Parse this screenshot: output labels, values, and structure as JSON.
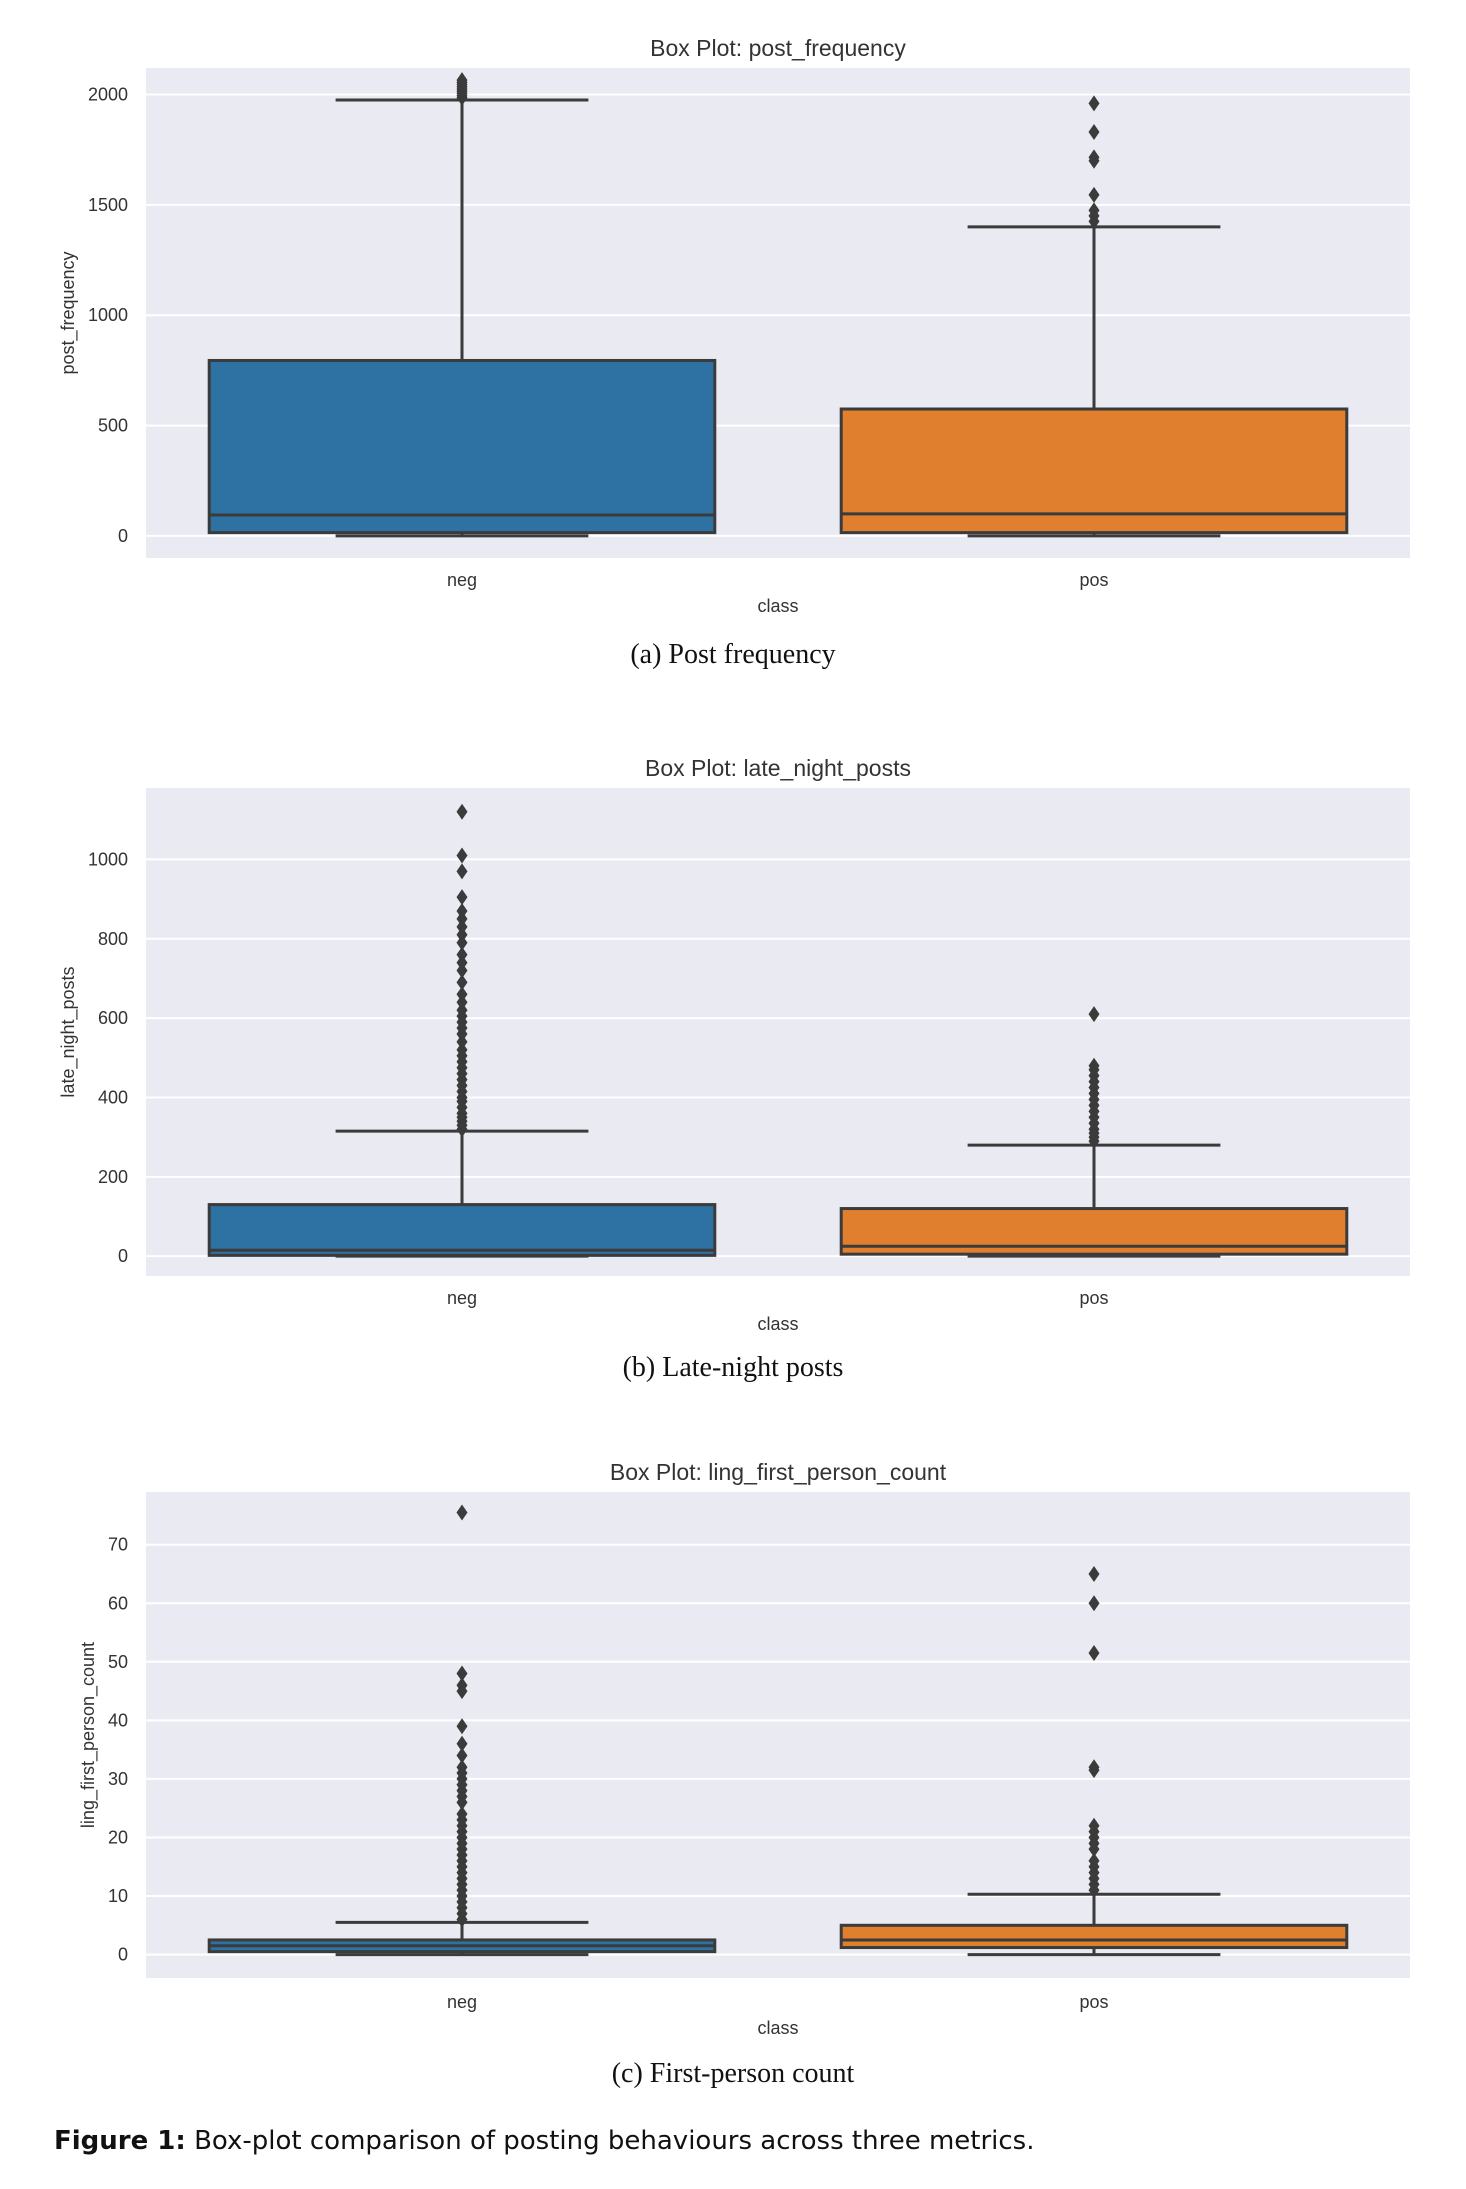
{
  "figure": {
    "label": "Figure 1:",
    "text": "Box-plot comparison of posting behaviours across three metrics."
  },
  "colors": {
    "neg": "#2e71a3",
    "pos": "#e07f2d",
    "line": "#3b3b3b",
    "bg": "#eaeaf2",
    "grid": "#ffffff"
  },
  "chart_data": [
    {
      "type": "box",
      "title": "Box Plot: post_frequency",
      "caption": "(a) Post frequency",
      "xlabel": "class",
      "ylabel": "post_frequency",
      "categories": [
        "neg",
        "pos"
      ],
      "yticks": [
        0,
        500,
        1000,
        1500,
        2000
      ],
      "ylim": [
        -100,
        2120
      ],
      "grid": true,
      "boxes": [
        {
          "category": "neg",
          "whisker_low": 0,
          "q1": 15,
          "median": 95,
          "q3": 795,
          "whisker_high": 1975,
          "outliers": [
            1985,
            1995,
            2005,
            2015,
            2025,
            2035,
            2045,
            2055,
            2065
          ]
        },
        {
          "category": "pos",
          "whisker_low": 0,
          "q1": 15,
          "median": 100,
          "q3": 575,
          "whisker_high": 1400,
          "outliers": [
            1425,
            1450,
            1475,
            1545,
            1700,
            1715,
            1830,
            1960
          ]
        }
      ]
    },
    {
      "type": "box",
      "title": "Box Plot: late_night_posts",
      "caption": "(b) Late-night posts",
      "xlabel": "class",
      "ylabel": "late_night_posts",
      "categories": [
        "neg",
        "pos"
      ],
      "yticks": [
        0,
        200,
        400,
        600,
        800,
        1000
      ],
      "ylim": [
        -50,
        1180
      ],
      "grid": true,
      "boxes": [
        {
          "category": "neg",
          "whisker_low": 0,
          "q1": 2,
          "median": 15,
          "q3": 130,
          "whisker_high": 315,
          "outliers": [
            320,
            330,
            340,
            350,
            360,
            375,
            390,
            400,
            415,
            430,
            445,
            460,
            475,
            490,
            505,
            520,
            540,
            560,
            575,
            590,
            605,
            620,
            640,
            660,
            690,
            720,
            740,
            760,
            790,
            810,
            830,
            850,
            870,
            905,
            970,
            1010,
            1120
          ]
        },
        {
          "category": "pos",
          "whisker_low": 0,
          "q1": 5,
          "median": 25,
          "q3": 120,
          "whisker_high": 280,
          "outliers": [
            290,
            300,
            310,
            320,
            335,
            350,
            365,
            380,
            395,
            410,
            425,
            440,
            455,
            470,
            480,
            610
          ]
        }
      ]
    },
    {
      "type": "box",
      "title": "Box Plot: ling_first_person_count",
      "caption": "(c) First-person count",
      "xlabel": "class",
      "ylabel": "ling_first_person_count",
      "categories": [
        "neg",
        "pos"
      ],
      "yticks": [
        0,
        10,
        20,
        30,
        40,
        50,
        60,
        70
      ],
      "ylim": [
        -4,
        79
      ],
      "grid": true,
      "boxes": [
        {
          "category": "neg",
          "whisker_low": 0,
          "q1": 0.5,
          "median": 1.5,
          "q3": 2.5,
          "whisker_high": 5.5,
          "outliers": [
            6,
            7,
            8,
            9,
            10,
            11,
            12,
            13,
            14,
            15,
            16,
            17,
            18,
            19,
            20,
            21,
            22,
            23,
            24,
            26,
            27,
            28,
            29,
            30,
            31,
            32,
            34,
            36,
            39,
            45,
            46,
            48,
            75.5
          ]
        },
        {
          "category": "pos",
          "whisker_low": 0,
          "q1": 1.2,
          "median": 2.5,
          "q3": 5,
          "whisker_high": 10.3,
          "outliers": [
            11,
            12,
            13,
            14,
            15,
            16,
            18,
            19,
            20,
            21,
            22,
            31.5,
            32,
            51.5,
            60,
            65
          ]
        }
      ]
    }
  ]
}
